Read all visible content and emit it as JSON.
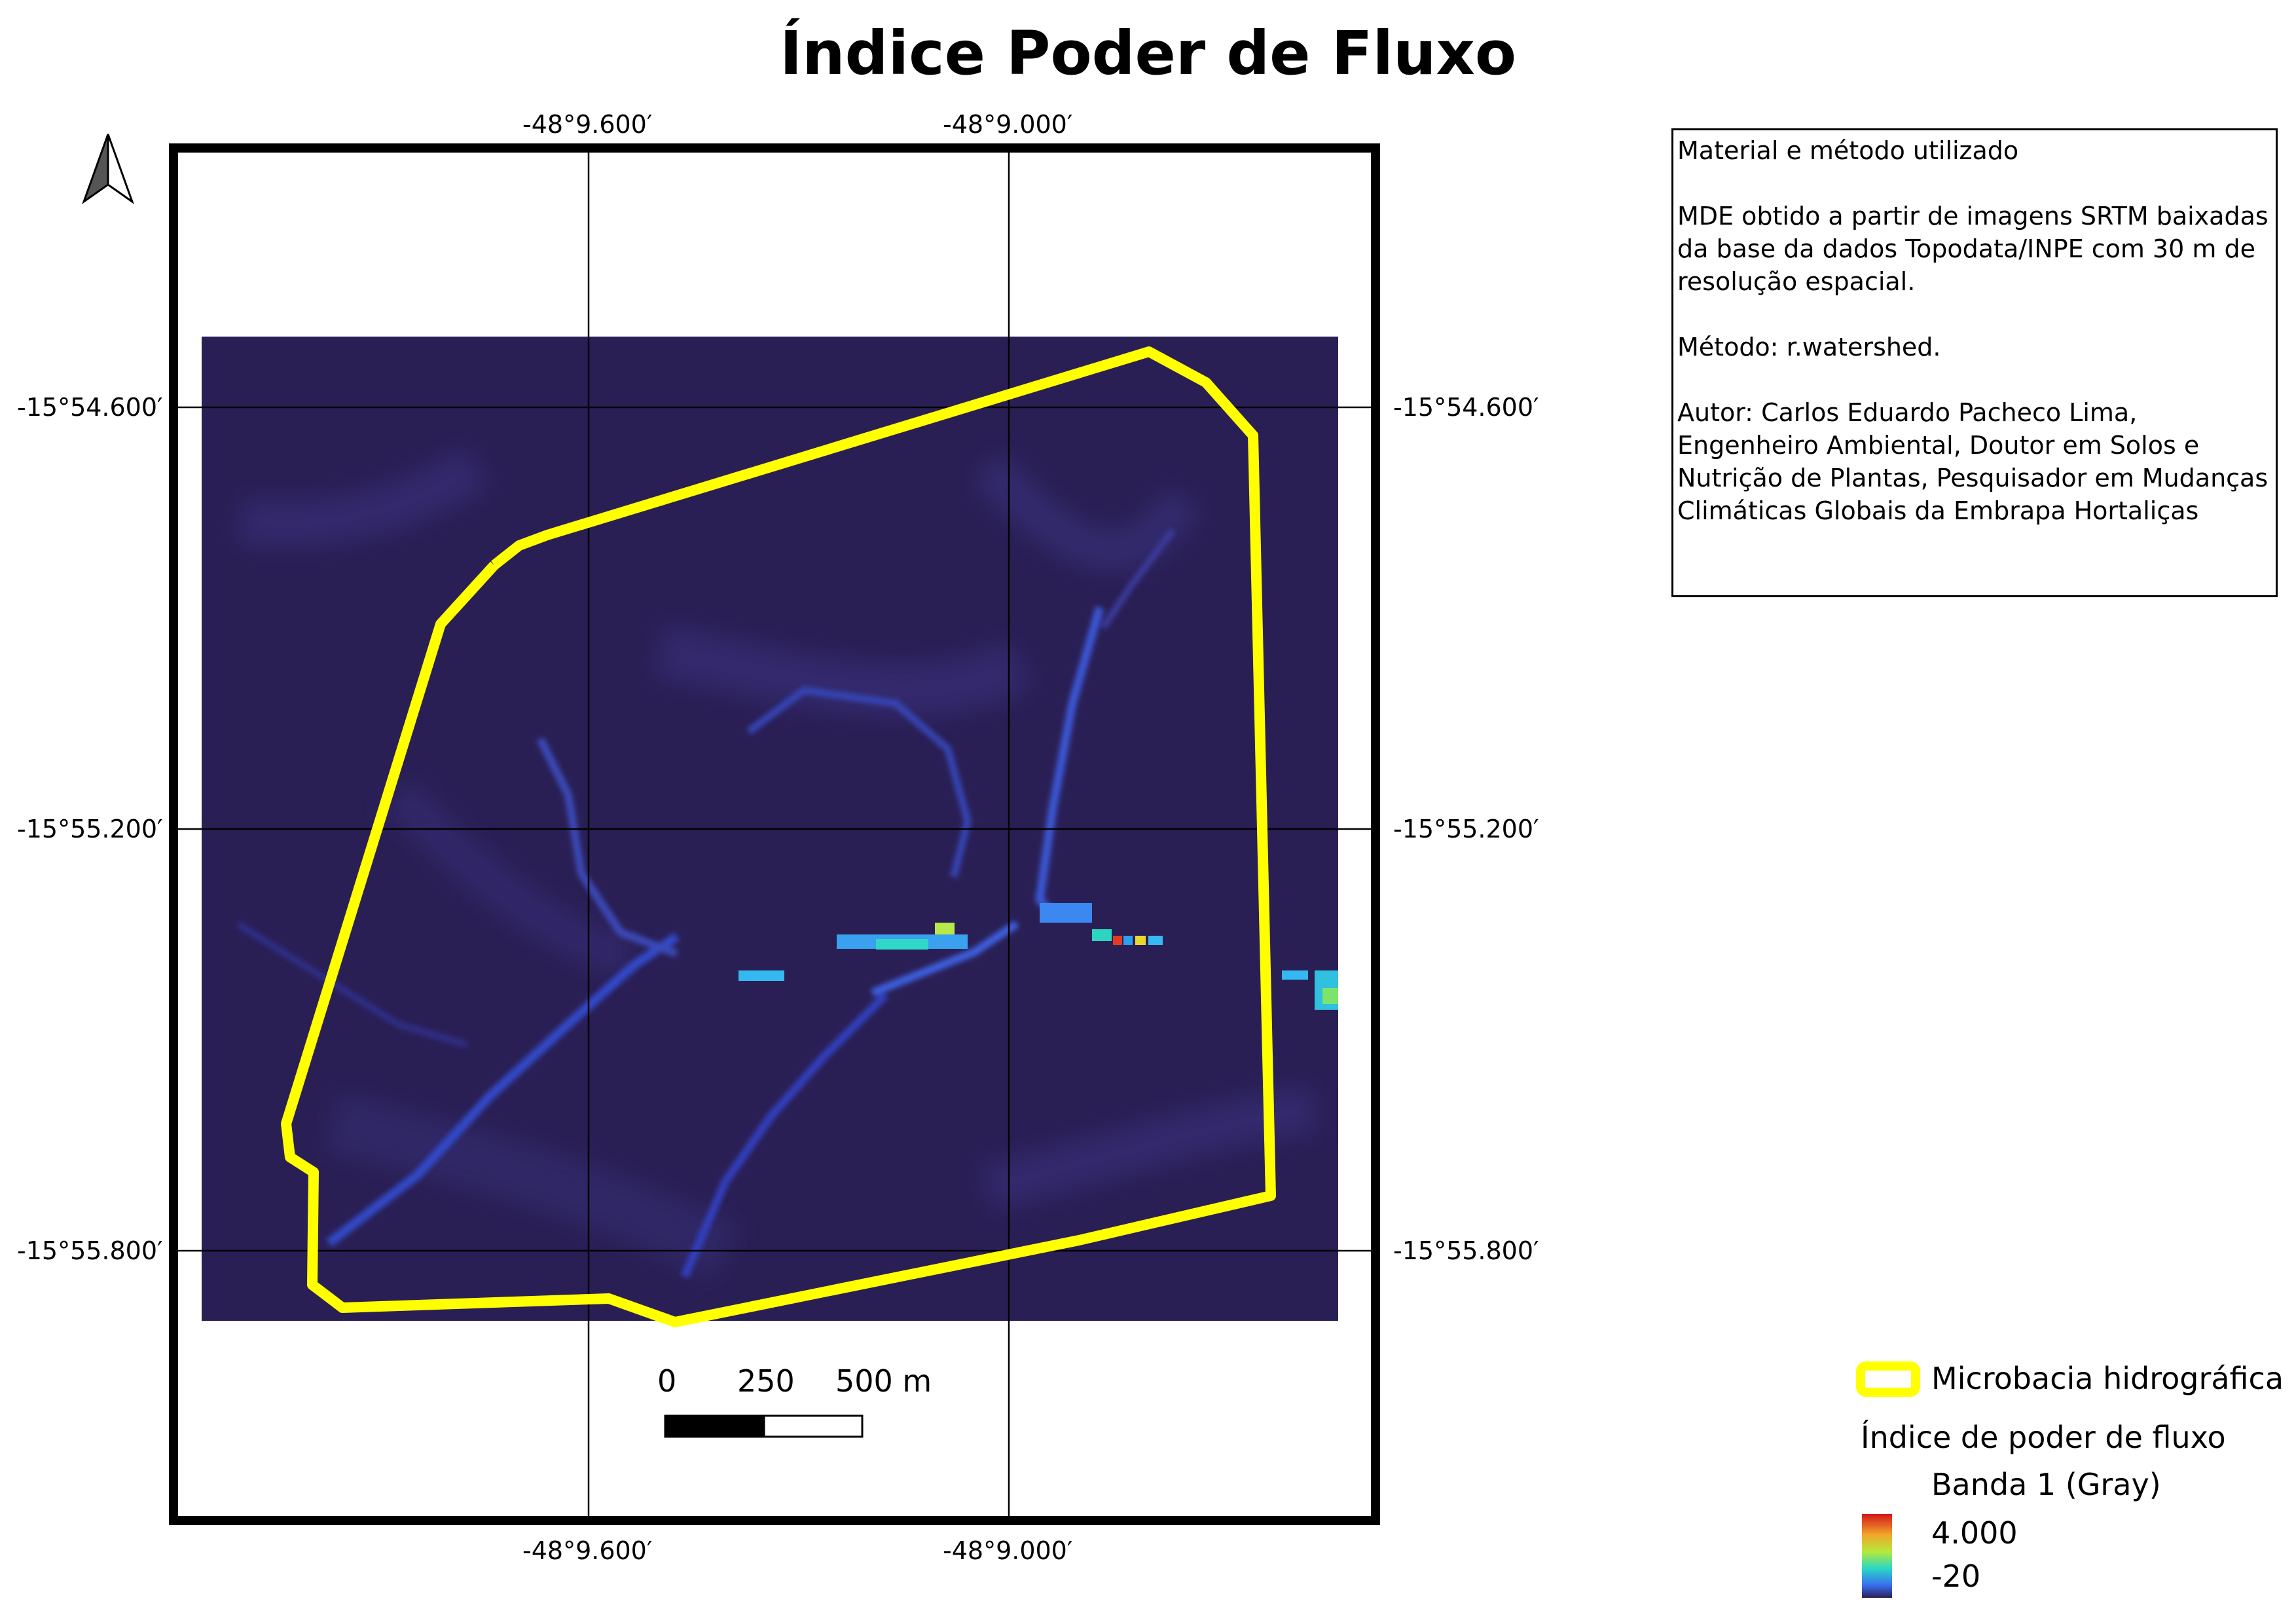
{
  "title": "Índice Poder de Fluxo",
  "coordinates": {
    "lon_left": "-48°9.600′",
    "lon_right": "-48°9.000′",
    "lat_top": "-15°54.600′",
    "lat_mid": "-15°55.200′",
    "lat_bottom": "-15°55.800′"
  },
  "scale_bar": {
    "label_0": "0",
    "label_250": "250",
    "label_500": "500 m"
  },
  "info_box": {
    "heading": "Material e método utilizado",
    "mde": "MDE obtido a partir de imagens SRTM baixadas da base da dados Topodata/INPE com 30 m de resolução espacial.",
    "method": "Método: r.watershed.",
    "author": "Autor: Carlos Eduardo Pacheco Lima, Engenheiro Ambiental, Doutor em Solos e Nutrição de Plantas, Pesquisador em Mudanças Climáticas Globais da Embrapa Hortaliças"
  },
  "legend": {
    "boundary_label": "Microbacia hidrográfica",
    "layer_title": "Índice de poder de fluxo",
    "band_label": "Banda 1 (Gray)",
    "max_value": "4.000",
    "min_value": "-20"
  },
  "colors": {
    "boundary": "#ffff00",
    "raster_background": "#2a1f55",
    "stream_low": "#3a4fd8",
    "stream_high": "#2ee8c0"
  }
}
